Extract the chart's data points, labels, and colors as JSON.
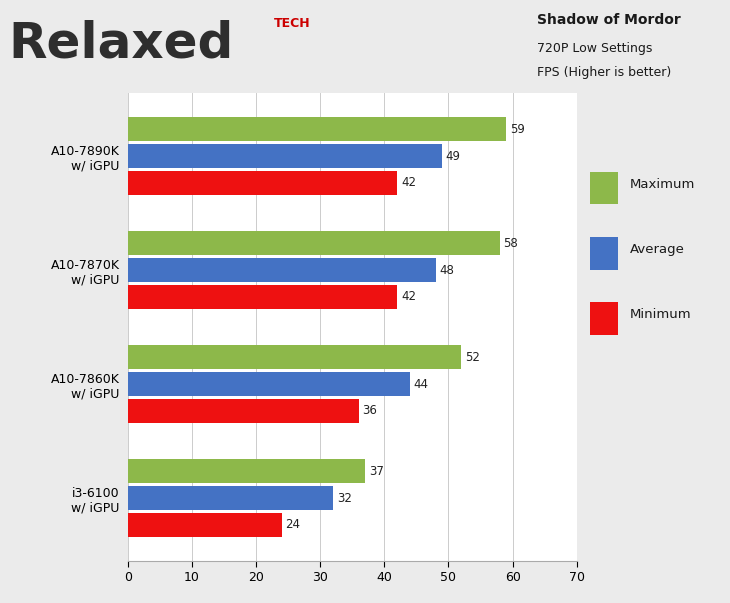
{
  "categories": [
    "A10-7890K\nw/ iGPU",
    "A10-7870K\nw/ iGPU",
    "A10-7860K\nw/ iGPU",
    "i3-6100\nw/ iGPU"
  ],
  "maximum": [
    59,
    58,
    52,
    37
  ],
  "average": [
    49,
    48,
    44,
    32
  ],
  "minimum": [
    42,
    42,
    36,
    24
  ],
  "bar_colors": {
    "maximum": "#8DB84A",
    "average": "#4472C4",
    "minimum": "#EE1111"
  },
  "title_line1": "Shadow of Mordor",
  "title_line2": "720P Low Settings",
  "title_line3": "FPS (Higher is better)",
  "xlim": [
    0,
    70
  ],
  "xticks": [
    0,
    10,
    20,
    30,
    40,
    50,
    60,
    70
  ],
  "legend_labels": [
    "Maximum",
    "Average",
    "Minimum"
  ],
  "bg_color": "#EBEBEB",
  "plot_bg_color": "#FFFFFF",
  "header_bg_color": "#E8E8E8",
  "bar_height": 0.21,
  "bar_gap": 0.025,
  "value_fontsize": 8.5,
  "tick_fontsize": 9,
  "ylabel_fontsize": 9
}
